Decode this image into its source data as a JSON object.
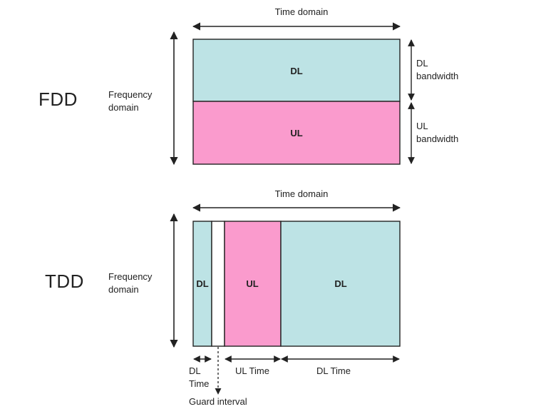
{
  "fdd": {
    "mode": "FDD",
    "time_axis": "Time domain",
    "freq_axis": "Frequency\ndomain",
    "dl_block": "DL",
    "ul_block": "UL",
    "dl_bandwidth": "DL\nbandwidth",
    "ul_bandwidth": "UL\nbandwidth"
  },
  "tdd": {
    "mode": "TDD",
    "time_axis": "Time domain",
    "freq_axis": "Frequency\ndomain",
    "dl_block_1": "DL",
    "ul_block": "UL",
    "dl_block_2": "DL",
    "dl_time": "DL\nTime",
    "ul_time": "UL Time",
    "dl_time_2": "DL Time",
    "guard_interval": "Guard interval"
  },
  "colors": {
    "downlink": "#bde3e5",
    "uplink": "#fa9bcd",
    "guard": "#ffffff",
    "stroke": "#222222"
  }
}
